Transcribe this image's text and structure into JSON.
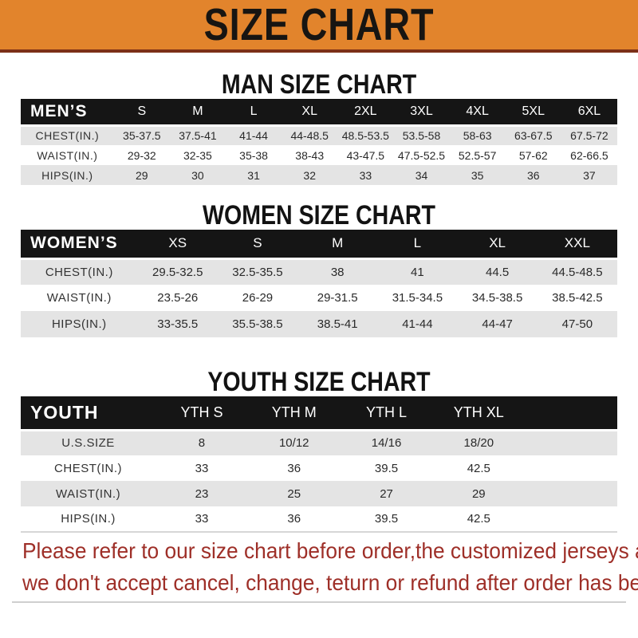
{
  "banner": {
    "title": "SIZE CHART",
    "bg_color": "#E2842C",
    "underline_color": "#7C3018",
    "text_color": "#171512"
  },
  "colors": {
    "table_header_bg": "#151515",
    "table_header_text": "#ffffff",
    "stripe_gray": "#E4E4E4",
    "footer_red": "#9E2F28"
  },
  "men": {
    "heading": "MAN SIZE CHART",
    "header_label": "MEN’S",
    "columns": [
      "S",
      "M",
      "L",
      "XL",
      "2XL",
      "3XL",
      "4XL",
      "5XL",
      "6XL"
    ],
    "spacer_columns": 0,
    "rows": [
      {
        "label": "CHEST(IN.)",
        "values": [
          "35-37.5",
          "37.5-41",
          "41-44",
          "44-48.5",
          "48.5-53.5",
          "53.5-58",
          "58-63",
          "63-67.5",
          "67.5-72"
        ]
      },
      {
        "label": "WAIST(IN.)",
        "values": [
          "29-32",
          "32-35",
          "35-38",
          "38-43",
          "43-47.5",
          "47.5-52.5",
          "52.5-57",
          "57-62",
          "62-66.5"
        ]
      },
      {
        "label": "HIPS(IN.)",
        "values": [
          "29",
          "30",
          "31",
          "32",
          "33",
          "34",
          "35",
          "36",
          "37"
        ]
      }
    ]
  },
  "women": {
    "heading": "WOMEN SIZE CHART",
    "header_label": "WOMEN’S",
    "columns": [
      "XS",
      "S",
      "M",
      "L",
      "XL",
      "XXL"
    ],
    "spacer_columns": 0,
    "rows": [
      {
        "label": "CHEST(IN.)",
        "values": [
          "29.5-32.5",
          "32.5-35.5",
          "38",
          "41",
          "44.5",
          "44.5-48.5"
        ]
      },
      {
        "label": "WAIST(IN.)",
        "values": [
          "23.5-26",
          "26-29",
          "29-31.5",
          "31.5-34.5",
          "34.5-38.5",
          "38.5-42.5"
        ]
      },
      {
        "label": "HIPS(IN.)",
        "values": [
          "33-35.5",
          "35.5-38.5",
          "38.5-41",
          "41-44",
          "44-47",
          "47-50"
        ]
      }
    ]
  },
  "youth": {
    "heading": "YOUTH SIZE CHART",
    "header_label": "YOUTH",
    "columns": [
      "YTH S",
      "YTH M",
      "YTH L",
      "YTH XL"
    ],
    "spacer_columns": 1,
    "rows": [
      {
        "label": "U.S.SIZE",
        "values": [
          "8",
          "10/12",
          "14/16",
          "18/20"
        ]
      },
      {
        "label": "CHEST(IN.)",
        "values": [
          "33",
          "36",
          "39.5",
          "42.5"
        ]
      },
      {
        "label": "WAIST(IN.)",
        "values": [
          "23",
          "25",
          "27",
          "29"
        ]
      },
      {
        "label": "HIPS(IN.)",
        "values": [
          "33",
          "36",
          "39.5",
          "42.5"
        ]
      }
    ]
  },
  "footer": {
    "line1": "Please refer to our size chart before order,the customized jerseys are special products,",
    "line2": "we don't accept cancel, change, teturn or refund after order has been placed!"
  }
}
